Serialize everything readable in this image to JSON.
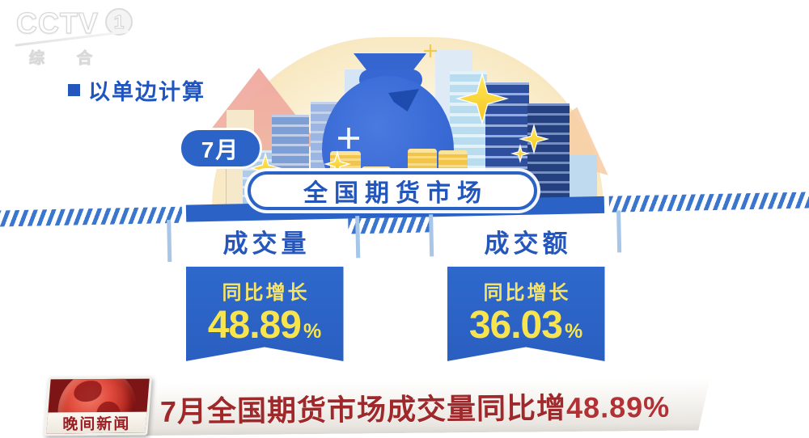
{
  "watermark": {
    "brand": "CCTV",
    "channel": "1",
    "subtitle": "综合"
  },
  "note": {
    "text": "以单边计算"
  },
  "period_label": "7月",
  "market_banner": "全国期货市场",
  "metrics": [
    {
      "title": "成交量",
      "caption": "同比增长",
      "value": "48.89",
      "unit": "%"
    },
    {
      "title": "成交额",
      "caption": "同比增长",
      "value": "36.03",
      "unit": "%"
    }
  ],
  "ticker": {
    "program": "晚间新闻",
    "headline_prefix": "7月全国期货市场成交量同比增",
    "headline_value": "48.89%"
  },
  "colors": {
    "primary_blue": "#2A63C5",
    "stripe_blue": "#3B76CE",
    "text_blue": "#2456BB",
    "accent_yellow": "#F8E54E",
    "coin_gold": "#F2C44A",
    "dome_cream": "#FBF2D9",
    "headline_red": "#9F282B",
    "badge_red": "#7D1416"
  },
  "chart_data": {
    "type": "table",
    "title": "全国期货市场",
    "period": "7月",
    "note": "以单边计算",
    "categories": [
      "成交量",
      "成交额"
    ],
    "series": [
      {
        "name": "同比增长 (%)",
        "values": [
          48.89,
          36.03
        ]
      }
    ]
  }
}
